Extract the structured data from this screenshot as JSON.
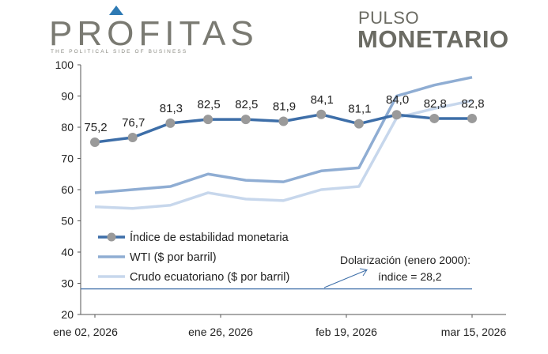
{
  "header": {
    "logo_text": "PROFITAS",
    "logo_tagline": "THE POLITICAL SIDE OF BUSINESS",
    "pulso": "PULSO",
    "monetario": "MONETARIO"
  },
  "colors": {
    "index": "#3d6ea8",
    "wti": "#8fadd3",
    "crudo": "#c7d7ec",
    "marker": "#9a9a9a",
    "dollar_line": "#3d6ea8",
    "logo_accent": "#2e7ab4"
  },
  "chart_data": {
    "type": "line",
    "title": "",
    "xlabel": "",
    "ylabel": "",
    "ylim": [
      20,
      100
    ],
    "yticks": [
      20,
      30,
      40,
      50,
      60,
      70,
      80,
      90,
      100
    ],
    "x_tick_labels": [
      "ene 02, 2026",
      "ene 26, 2026",
      "feb 19, 2026",
      "mar 15, 2026"
    ],
    "grid": false,
    "legend_position": "lower-left",
    "series": [
      {
        "name": "Índice de estabilidad monetaria",
        "values": [
          75.2,
          76.7,
          81.3,
          82.5,
          82.5,
          81.9,
          84.1,
          81.1,
          84.0,
          82.8,
          82.8
        ],
        "labels": [
          "75,2",
          "76,7",
          "81,3",
          "82,5",
          "82,5",
          "81,9",
          "84,1",
          "81,1",
          "84,0",
          "82,8",
          "82,8"
        ]
      },
      {
        "name": "WTI ($ por barril)",
        "values": [
          59.0,
          60.0,
          61.0,
          65.0,
          63.0,
          62.5,
          66.0,
          67.0,
          90.0,
          93.5,
          96.0
        ]
      },
      {
        "name": "Crudo ecuatoriano ($ por barril)",
        "values": [
          54.5,
          54.0,
          55.0,
          59.0,
          57.0,
          56.5,
          60.0,
          61.0,
          83.0,
          86.0,
          88.5
        ]
      }
    ],
    "reference_line": {
      "value": 28.2,
      "label_line1": "Dolarización (enero 2000):",
      "label_line2": "índice = 28,2"
    }
  }
}
